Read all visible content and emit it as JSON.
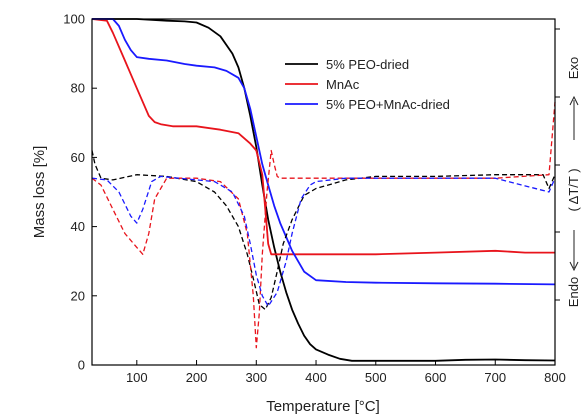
{
  "chart_data": {
    "type": "line",
    "xlabel": "Temperature [°C]",
    "ylabel": "Mass loss [%]",
    "xlim": [
      25,
      800
    ],
    "ylim": [
      0,
      100
    ],
    "x_ticks": [
      100,
      200,
      300,
      400,
      500,
      600,
      700,
      800
    ],
    "y_ticks": [
      0,
      20,
      40,
      60,
      80,
      100
    ],
    "right_axis": {
      "label_exo": "Exo",
      "label_mid": "( ΔT/T )",
      "label_endo": "Endo",
      "has_arrows": true
    },
    "legend": {
      "position": "top-center",
      "entries": [
        {
          "name": "5% PEO-dried",
          "color": "#000000"
        },
        {
          "name": "MnAc",
          "color": "#e8141c"
        },
        {
          "name": "5% PEO+MnAc-dried",
          "color": "#1a1aff"
        }
      ]
    },
    "series": [
      {
        "name": "5% PEO-dried",
        "kind": "TG",
        "color": "#000000",
        "style": "solid",
        "x": [
          25,
          50,
          100,
          150,
          180,
          200,
          220,
          240,
          260,
          270,
          280,
          290,
          300,
          310,
          320,
          330,
          340,
          350,
          360,
          370,
          380,
          390,
          400,
          420,
          440,
          460,
          500,
          550,
          600,
          650,
          700,
          750,
          800
        ],
        "y": [
          100,
          100,
          100,
          99.5,
          99.3,
          99,
          97.5,
          95,
          90,
          86,
          80,
          72,
          63,
          52,
          42,
          34,
          27,
          21,
          16,
          12,
          8.5,
          6,
          4.5,
          3,
          1.8,
          1.2,
          1.2,
          1.2,
          1.2,
          1.5,
          1.6,
          1.4,
          1.3
        ]
      },
      {
        "name": "MnAc",
        "kind": "TG",
        "color": "#e8141c",
        "style": "solid",
        "x": [
          25,
          50,
          60,
          80,
          100,
          120,
          130,
          140,
          160,
          200,
          240,
          270,
          290,
          300,
          310,
          315,
          320,
          325,
          330,
          360,
          400,
          500,
          600,
          700,
          750,
          800
        ],
        "y": [
          100,
          99.5,
          96,
          88,
          80,
          72,
          70.2,
          69.6,
          69,
          69,
          68,
          67,
          64,
          62,
          55,
          45,
          35,
          32,
          32,
          32,
          32,
          32,
          32.5,
          33,
          32.5,
          32.5
        ]
      },
      {
        "name": "5% PEO+MnAc-dried",
        "kind": "TG",
        "color": "#1a1aff",
        "style": "solid",
        "x": [
          25,
          60,
          70,
          80,
          90,
          100,
          120,
          150,
          180,
          200,
          230,
          250,
          270,
          280,
          290,
          300,
          310,
          320,
          330,
          340,
          350,
          360,
          370,
          380,
          400,
          450,
          500,
          600,
          700,
          800
        ],
        "y": [
          100,
          100,
          98,
          94,
          91,
          89,
          88.5,
          88,
          87,
          86.5,
          86,
          85,
          83,
          80,
          74,
          66,
          58,
          52,
          46,
          41,
          37,
          33,
          30,
          27,
          24.5,
          24,
          23.8,
          23.6,
          23.5,
          23.3
        ]
      },
      {
        "name": "5% PEO-dried DTA",
        "kind": "DTA",
        "color": "#000000",
        "style": "dashed",
        "x": [
          25,
          30,
          40,
          60,
          100,
          150,
          200,
          230,
          250,
          270,
          285,
          295,
          305,
          315,
          325,
          335,
          345,
          360,
          380,
          400,
          450,
          500,
          600,
          700,
          780,
          790,
          800
        ],
        "y": [
          62,
          58,
          54,
          53.5,
          55,
          54.5,
          53,
          50,
          46,
          40,
          32,
          25,
          17.5,
          16,
          19.5,
          27,
          35,
          42,
          49,
          51,
          53.5,
          54.5,
          54.5,
          55,
          55,
          51,
          55
        ]
      },
      {
        "name": "MnAc DTA",
        "kind": "DTA",
        "color": "#e8141c",
        "style": "dashed",
        "x": [
          25,
          40,
          60,
          80,
          100,
          110,
          120,
          130,
          150,
          200,
          240,
          270,
          285,
          295,
          300,
          305,
          310,
          318,
          325,
          330,
          335,
          340,
          350,
          400,
          500,
          600,
          700,
          790,
          800
        ],
        "y": [
          54,
          52,
          45,
          38,
          34,
          32,
          38,
          48,
          54,
          54,
          53,
          48,
          38,
          20,
          5,
          15,
          32,
          50,
          62,
          58,
          54.5,
          54,
          54,
          54,
          54,
          54,
          54,
          55,
          76
        ]
      },
      {
        "name": "5% PEO+MnAc-dried DTA",
        "kind": "DTA",
        "color": "#1a1aff",
        "style": "dashed",
        "x": [
          25,
          50,
          70,
          90,
          100,
          110,
          125,
          140,
          170,
          200,
          230,
          260,
          280,
          290,
          300,
          310,
          320,
          335,
          350,
          360,
          375,
          390,
          400,
          450,
          500,
          600,
          700,
          790,
          800
        ],
        "y": [
          54,
          53.5,
          50,
          43,
          41,
          45,
          53,
          54.5,
          54,
          53.5,
          53,
          50,
          43,
          35,
          26,
          20,
          17,
          21,
          30,
          38,
          48,
          52,
          53,
          54,
          54,
          54,
          54,
          50,
          54
        ]
      }
    ]
  }
}
